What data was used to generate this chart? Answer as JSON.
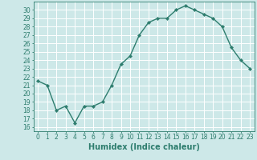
{
  "x": [
    0,
    1,
    2,
    3,
    4,
    5,
    6,
    7,
    8,
    9,
    10,
    11,
    12,
    13,
    14,
    15,
    16,
    17,
    18,
    19,
    20,
    21,
    22,
    23
  ],
  "y": [
    21.5,
    21.0,
    18.0,
    18.5,
    16.5,
    18.5,
    18.5,
    19.0,
    21.0,
    23.5,
    24.5,
    27.0,
    28.5,
    29.0,
    29.0,
    30.0,
    30.5,
    30.0,
    29.5,
    29.0,
    28.0,
    25.5,
    24.0,
    23.0
  ],
  "xlabel": "Humidex (Indice chaleur)",
  "ylabel": "",
  "title": "",
  "xlim": [
    -0.5,
    23.5
  ],
  "ylim": [
    15.5,
    31.0
  ],
  "yticks": [
    16,
    17,
    18,
    19,
    20,
    21,
    22,
    23,
    24,
    25,
    26,
    27,
    28,
    29,
    30
  ],
  "xticks": [
    0,
    1,
    2,
    3,
    4,
    5,
    6,
    7,
    8,
    9,
    10,
    11,
    12,
    13,
    14,
    15,
    16,
    17,
    18,
    19,
    20,
    21,
    22,
    23
  ],
  "line_color": "#2e7d6e",
  "marker_color": "#2e7d6e",
  "bg_color": "#cde8e8",
  "grid_color": "#ffffff",
  "tick_label_fontsize": 5.5,
  "xlabel_fontsize": 7.0,
  "line_width": 1.0,
  "marker_size": 2.2
}
